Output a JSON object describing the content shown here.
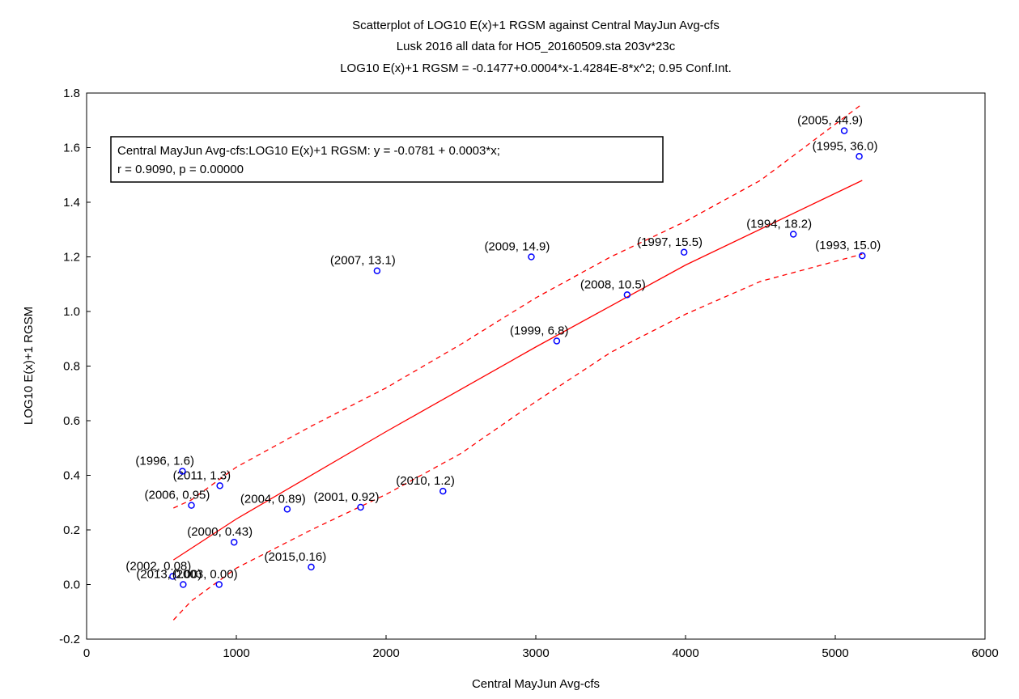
{
  "chart_data": {
    "type": "scatter",
    "title": [
      "Scatterplot of LOG10 E(x)+1 RGSM against Central MayJun Avg-cfs",
      "Lusk 2016 all data for HO5_20160509.sta 203v*23c",
      "LOG10 E(x)+1 RGSM = -0.1477+0.0004*x-1.4284E-8*x^2; 0.95 Conf.Int."
    ],
    "xlabel": "Central MayJun Avg-cfs",
    "ylabel": "LOG10 E(x)+1 RGSM",
    "annotation": [
      "Central MayJun Avg-cfs:LOG10 E(x)+1 RGSM:   y = -0.0781 + 0.0003*x;",
      "r = 0.9090, p = 0.00000"
    ],
    "xlim": [
      0,
      6000
    ],
    "xticks": [
      0,
      1000,
      2000,
      3000,
      4000,
      5000,
      6000
    ],
    "ylim": [
      -0.2,
      1.8
    ],
    "yticks": [
      -0.2,
      {
        "value": 0,
        "label": "0.0"
      },
      0.2,
      0.4,
      0.6,
      0.8,
      {
        "value": 1,
        "label": "1.0"
      },
      1.2,
      1.4,
      1.6,
      1.8
    ],
    "points": {
      "color": "#0000ff",
      "x": [
        5060,
        5160,
        4720,
        5180,
        3990,
        2970,
        1940,
        3610,
        3140,
        2380,
        1830,
        1340,
        700,
        890,
        640,
        985,
        1500,
        575,
        645,
        885
      ],
      "y": [
        1.662,
        1.568,
        1.283,
        1.204,
        1.217,
        1.2,
        1.149,
        1.061,
        0.892,
        0.342,
        0.283,
        0.276,
        0.29,
        0.362,
        0.415,
        0.155,
        0.064,
        0.03,
        0.0,
        0.0
      ],
      "labels": [
        "(2005, 44.9)",
        "(1995, 36.0)",
        "(1994, 18.2)",
        "(1993, 15.0)",
        "(1997, 15.5)",
        "(2009, 14.9)",
        "(2007, 13.1)",
        "(2008, 10.5)",
        "(1999, 6.8)",
        "(2010, 1.2)",
        "(2001, 0.92)",
        "(2004, 0.89)",
        "(2006, 0.95)",
        "(2011, 1.3)",
        "(1996, 1.6)",
        "(2000, 0.43)",
        "(2015,0.16)",
        "(2002, 0.08)",
        "(2013, 0.00)",
        "(2003, 0.00)"
      ]
    },
    "fit": {
      "color": "#ff0000",
      "x": [
        580,
        1000,
        2000,
        3000,
        4000,
        5180
      ],
      "y": [
        0.09,
        0.24,
        0.56,
        0.87,
        1.17,
        1.48
      ]
    },
    "conf_upper": {
      "color": "#ff0000",
      "x": [
        580,
        700,
        1000,
        1500,
        2000,
        2500,
        3000,
        3500,
        4000,
        4500,
        5180
      ],
      "y": [
        0.28,
        0.31,
        0.43,
        0.58,
        0.72,
        0.88,
        1.05,
        1.2,
        1.33,
        1.48,
        1.76
      ]
    },
    "conf_lower": {
      "color": "#ff0000",
      "x": [
        580,
        700,
        1000,
        1500,
        2000,
        2500,
        3000,
        3500,
        4000,
        4500,
        5180
      ],
      "y": [
        -0.13,
        -0.06,
        0.06,
        0.2,
        0.33,
        0.48,
        0.67,
        0.85,
        0.99,
        1.11,
        1.21
      ]
    }
  }
}
